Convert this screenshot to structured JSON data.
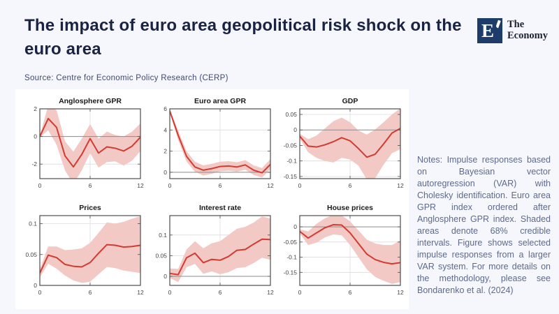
{
  "header": {
    "title": "The impact of euro area geopolitical risk shock on the euro area",
    "source": "Source: Centre for Economic Policy Research (CERP)"
  },
  "logo": {
    "letter": "E",
    "name_line1": "The",
    "name_line2": "Economy"
  },
  "notes": {
    "text": "Notes: Impulse responses based on Bayesian vector autoregression (VAR) with Cholesky identification. Euro area GPR index ordered after Anglosphere GPR index. Shaded areas denote 68% credible intervals. Figure shows selected impulse responses from a larger VAR system. For more details on the methodology, please see Bondarenko et al. (2024)"
  },
  "colors": {
    "page_bg": "#f6f7fc",
    "panel_bg": "#ffffff",
    "line": "#d23b31",
    "band": "#f2c9c4",
    "axis_box": "#4d4d4d",
    "grid": "#dcdcdc",
    "zero_line": "#8c8c8c",
    "tick_text": "#444444",
    "chart_title": "#1a1a1a",
    "logo_navy": "#1e3c69",
    "title_text": "#1a2342",
    "notes_text": "#5e6a8c"
  },
  "chart_data": [
    {
      "type": "line",
      "title": "Anglosphere GPR",
      "x": [
        0,
        1,
        2,
        3,
        4,
        5,
        6,
        7,
        8,
        9,
        10,
        11,
        12
      ],
      "values": [
        0,
        1.3,
        0.65,
        -1.4,
        -2.2,
        -1.3,
        -0.15,
        -1.2,
        -0.75,
        -0.85,
        -1.05,
        -0.7,
        -0.05
      ],
      "band_upper": [
        0.05,
        2.25,
        1.9,
        -0.35,
        -1.1,
        -0.15,
        0.9,
        -0.15,
        0.35,
        0.1,
        0.0,
        0.35,
        0.95
      ],
      "band_lower": [
        -0.05,
        0.45,
        -0.6,
        -2.45,
        -3.45,
        -2.45,
        -1.2,
        -2.25,
        -1.85,
        -1.8,
        -2.1,
        -1.75,
        -1.05
      ],
      "ylim": [
        -3.05,
        2.0
      ],
      "yticks": [
        2,
        0,
        -2
      ],
      "xticks": [
        0,
        6,
        12
      ]
    },
    {
      "type": "line",
      "title": "Euro area GPR",
      "x": [
        0,
        1,
        2,
        3,
        4,
        5,
        6,
        7,
        8,
        9,
        10,
        11,
        12
      ],
      "values": [
        5.8,
        3.5,
        1.5,
        0.5,
        0.2,
        0.35,
        0.55,
        0.6,
        0.5,
        0.7,
        0.2,
        -0.05,
        0.75
      ],
      "band_upper": [
        5.9,
        3.95,
        2.0,
        1.0,
        0.65,
        0.8,
        1.0,
        1.05,
        0.95,
        1.15,
        0.65,
        0.4,
        1.25
      ],
      "band_lower": [
        5.7,
        3.05,
        1.0,
        0.05,
        -0.3,
        -0.15,
        0.1,
        0.15,
        0.05,
        0.25,
        -0.25,
        -0.5,
        0.3
      ],
      "ylim": [
        -0.6,
        6.0
      ],
      "yticks": [
        6,
        4,
        2,
        0
      ],
      "xticks": [
        0,
        6,
        12
      ]
    },
    {
      "type": "line",
      "title": "GDP",
      "x": [
        0,
        1,
        2,
        3,
        4,
        5,
        6,
        7,
        8,
        9,
        10,
        11,
        12
      ],
      "values": [
        -0.02,
        -0.052,
        -0.055,
        -0.048,
        -0.038,
        -0.025,
        -0.035,
        -0.06,
        -0.088,
        -0.078,
        -0.045,
        -0.01,
        0.005
      ],
      "band_upper": [
        -0.012,
        -0.03,
        -0.018,
        0.005,
        0.028,
        0.04,
        0.025,
        -0.002,
        -0.015,
        0.002,
        0.025,
        0.05,
        0.07
      ],
      "band_lower": [
        -0.028,
        -0.072,
        -0.09,
        -0.1,
        -0.105,
        -0.09,
        -0.095,
        -0.115,
        -0.16,
        -0.155,
        -0.112,
        -0.075,
        -0.062
      ],
      "ylim": [
        -0.157,
        0.068
      ],
      "yticks": [
        0.05,
        0,
        -0.05,
        -0.1,
        -0.15
      ],
      "xticks": [
        0,
        6,
        12
      ]
    },
    {
      "type": "line",
      "title": "Prices",
      "x": [
        0,
        1,
        2,
        3,
        4,
        5,
        6,
        7,
        8,
        9,
        10,
        11,
        12
      ],
      "values": [
        0.02,
        0.049,
        0.045,
        0.034,
        0.031,
        0.03,
        0.037,
        0.052,
        0.066,
        0.065,
        0.062,
        0.063,
        0.065
      ],
      "band_upper": [
        0.026,
        0.063,
        0.063,
        0.057,
        0.058,
        0.06,
        0.069,
        0.085,
        0.102,
        0.1,
        0.103,
        0.108,
        0.112
      ],
      "band_lower": [
        0.013,
        0.035,
        0.027,
        0.016,
        0.008,
        0.004,
        0.006,
        0.018,
        0.03,
        0.028,
        0.024,
        0.022,
        0.02
      ],
      "ylim": [
        0,
        0.113
      ],
      "yticks": [
        0.1,
        0.05,
        0
      ],
      "xticks": [
        0,
        6,
        12
      ]
    },
    {
      "type": "line",
      "title": "Interest rate",
      "x": [
        0,
        1,
        2,
        3,
        4,
        5,
        6,
        7,
        8,
        9,
        10,
        11,
        12
      ],
      "values": [
        0.007,
        0.004,
        0.045,
        0.056,
        0.033,
        0.041,
        0.039,
        0.048,
        0.063,
        0.065,
        0.078,
        0.09,
        0.089
      ],
      "band_upper": [
        0.019,
        0.018,
        0.065,
        0.085,
        0.068,
        0.08,
        0.085,
        0.1,
        0.115,
        0.12,
        0.13,
        0.145,
        0.14
      ],
      "band_lower": [
        -0.004,
        -0.014,
        0.022,
        0.03,
        0.006,
        0.012,
        0.005,
        0.01,
        0.02,
        0.022,
        0.032,
        0.045,
        0.04
      ],
      "ylim": [
        -0.022,
        0.147
      ],
      "yticks": [
        0.1,
        0.05,
        0
      ],
      "xticks": [
        0,
        6,
        12
      ]
    },
    {
      "type": "line",
      "title": "House prices",
      "x": [
        0,
        1,
        2,
        3,
        4,
        5,
        6,
        7,
        8,
        9,
        10,
        11,
        12
      ],
      "values": [
        -0.015,
        -0.037,
        -0.02,
        -0.003,
        0.007,
        0.006,
        -0.02,
        -0.055,
        -0.09,
        -0.108,
        -0.117,
        -0.122,
        -0.118
      ],
      "band_upper": [
        -0.008,
        -0.015,
        0.01,
        0.028,
        0.04,
        0.038,
        0.018,
        -0.012,
        -0.042,
        -0.055,
        -0.06,
        -0.06,
        -0.045
      ],
      "band_lower": [
        -0.022,
        -0.06,
        -0.052,
        -0.035,
        -0.025,
        -0.028,
        -0.06,
        -0.1,
        -0.14,
        -0.165,
        -0.178,
        -0.188,
        -0.182
      ],
      "ylim": [
        -0.193,
        0.037
      ],
      "yticks": [
        0,
        -0.05,
        -0.1,
        -0.15
      ],
      "xticks": [
        0,
        6,
        12
      ]
    }
  ]
}
